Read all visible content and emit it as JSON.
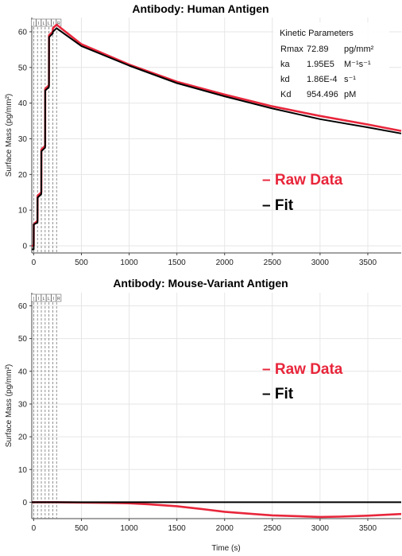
{
  "chart_data": [
    {
      "type": "line",
      "title": "Antibody: Human Antigen",
      "ylabel": "Surface Mass (pg/mm²)",
      "xlabel": "",
      "xlim": [
        -20,
        3850
      ],
      "ylim": [
        -2,
        64
      ],
      "x_ticks": [
        0,
        500,
        1000,
        1500,
        2000,
        2500,
        3000,
        3500
      ],
      "y_ticks": [
        0,
        10,
        20,
        30,
        40,
        50,
        60
      ],
      "x_tick_labels": [
        "0",
        "500",
        "1000",
        "1500",
        "2000",
        "2500",
        "3000",
        "3500"
      ],
      "y_tick_labels": [
        "0",
        "10",
        "20",
        "30",
        "40",
        "50",
        "60"
      ],
      "injection_markers": [
        0,
        40,
        80,
        120,
        160,
        200,
        240
      ],
      "injection_labels": [
        "(",
        "I",
        "L",
        "L",
        "I",
        "R"
      ],
      "legend": [
        "Raw Data",
        "Fit"
      ],
      "kinetic_parameters": {
        "header": "Kinetic Parameters",
        "rows": [
          {
            "name": "Rmax",
            "value": "72.89",
            "unit": "pg/mm²"
          },
          {
            "name": "ka",
            "value": "1.95E5",
            "unit": "M⁻¹s⁻¹"
          },
          {
            "name": "kd",
            "value": "1.86E-4",
            "unit": "s⁻¹"
          },
          {
            "name": "Kd",
            "value": "954.496",
            "unit": "pM"
          }
        ]
      },
      "series": [
        {
          "name": "Raw Data",
          "color": "#e8263b",
          "x": [
            -20,
            0,
            1,
            40,
            41,
            80,
            81,
            120,
            121,
            160,
            161,
            200,
            201,
            240,
            500,
            1000,
            1500,
            2000,
            2500,
            3000,
            3500,
            3850
          ],
          "y": [
            0,
            0,
            6,
            7,
            14,
            15,
            27,
            28,
            44,
            45,
            59,
            60,
            61,
            62,
            56.5,
            50.8,
            46.0,
            42.4,
            39.1,
            36.4,
            34.0,
            32.2
          ]
        },
        {
          "name": "Fit",
          "color": "#000000",
          "x": [
            -20,
            0,
            1,
            40,
            41,
            80,
            81,
            120,
            121,
            160,
            161,
            200,
            201,
            240,
            500,
            1000,
            1500,
            2000,
            2500,
            3000,
            3500,
            3850
          ],
          "y": [
            -1,
            -1,
            6,
            6.5,
            13.5,
            14.5,
            26.5,
            27.5,
            43.5,
            44.5,
            58.5,
            59.5,
            60,
            61,
            56.0,
            50.5,
            45.6,
            41.9,
            38.5,
            35.5,
            33.2,
            31.5
          ]
        }
      ]
    },
    {
      "type": "line",
      "title": "Antibody: Mouse-Variant Antigen",
      "ylabel": "Surface Mass (pg/mm²)",
      "xlabel": "Time (s)",
      "xlim": [
        -20,
        3850
      ],
      "ylim": [
        -5,
        64
      ],
      "x_ticks": [
        0,
        500,
        1000,
        1500,
        2000,
        2500,
        3000,
        3500
      ],
      "y_ticks": [
        0,
        10,
        20,
        30,
        40,
        50,
        60
      ],
      "x_tick_labels": [
        "0",
        "500",
        "1000",
        "1500",
        "2000",
        "2500",
        "3000",
        "3500"
      ],
      "y_tick_labels": [
        "0",
        "10",
        "20",
        "30",
        "40",
        "50",
        "60"
      ],
      "injection_markers": [
        0,
        40,
        80,
        120,
        160,
        200,
        240
      ],
      "injection_labels": [
        "(",
        "I",
        "L",
        "L",
        "I",
        "R"
      ],
      "legend": [
        "Raw Data",
        "Fit"
      ],
      "series": [
        {
          "name": "Raw Data",
          "color": "#e8263b",
          "x": [
            -20,
            0,
            240,
            500,
            800,
            1000,
            1200,
            1500,
            1800,
            2000,
            2300,
            2500,
            2800,
            3000,
            3200,
            3500,
            3850
          ],
          "y": [
            0,
            0,
            0,
            -0.1,
            -0.2,
            -0.3,
            -0.6,
            -1.2,
            -2.2,
            -2.9,
            -3.6,
            -4.0,
            -4.3,
            -4.5,
            -4.4,
            -4.1,
            -3.6
          ]
        },
        {
          "name": "Fit",
          "color": "#000000",
          "x": [
            -20,
            3850
          ],
          "y": [
            0,
            0
          ]
        }
      ]
    }
  ]
}
